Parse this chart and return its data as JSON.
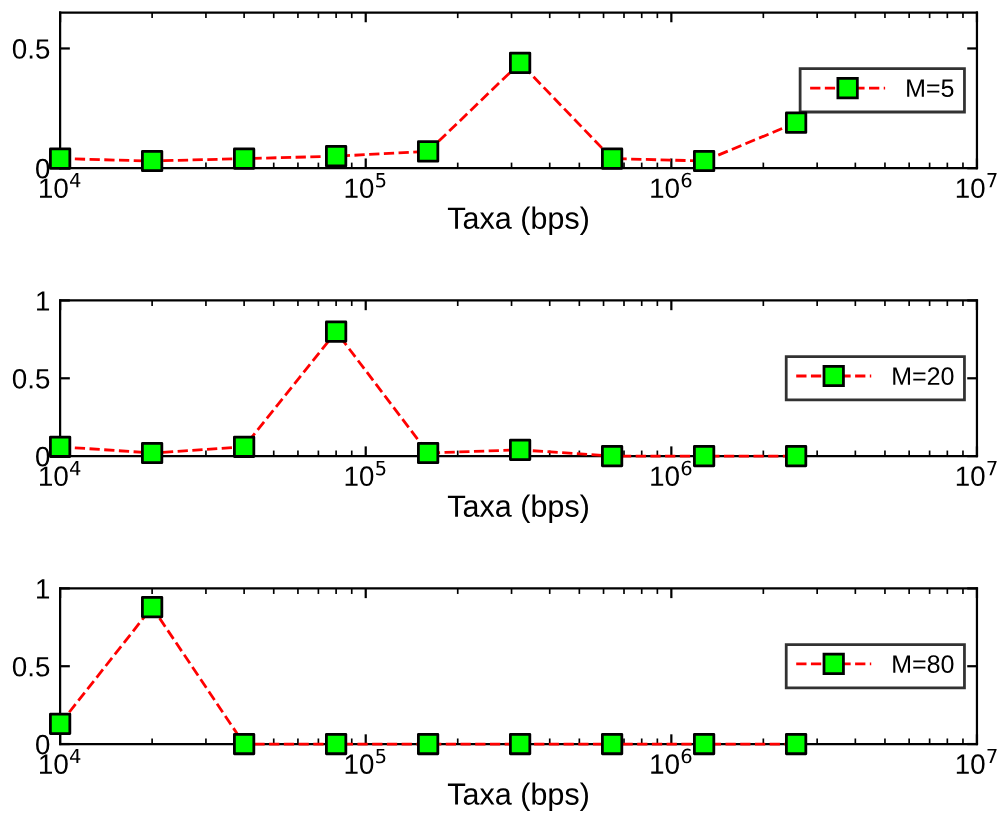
{
  "chart_data": [
    {
      "type": "line",
      "xlabel": "Taxa (bps)",
      "log": "x",
      "xlim": [
        10000,
        10000000
      ],
      "xticks": [
        {
          "value": 10000,
          "label": "10$^{4}$"
        },
        {
          "value": 100000,
          "label": "10$^{5}$"
        },
        {
          "value": 1000000,
          "label": "10$^{6}$"
        },
        {
          "value": 10000000,
          "label": "10$^{7}$"
        }
      ],
      "ylim": [
        0,
        0.65
      ],
      "yticks": [
        0,
        0.5
      ],
      "grid": false,
      "legend": "right",
      "marker": "square",
      "line_style": "dashed",
      "x": [
        10000,
        20000,
        40000,
        80000,
        160000,
        320000,
        640000,
        1280000,
        2560000
      ],
      "series": [
        {
          "name": "M=5",
          "color": "#ff0000",
          "colors": [
            "#00ff00",
            "#00ff00",
            "#00ff00",
            "#00ff00",
            "#00ff00",
            "#00ff00",
            "#00ff00",
            "#00ff00",
            "#00ff00"
          ],
          "values": [
            0.04,
            0.03,
            0.04,
            0.05,
            0.07,
            0.44,
            0.04,
            0.03,
            0.19
          ]
        }
      ]
    },
    {
      "type": "line",
      "xlabel": "Taxa (bps)",
      "log": "x",
      "xlim": [
        10000,
        10000000
      ],
      "xticks": [
        {
          "value": 10000,
          "label": "10$^{4}$"
        },
        {
          "value": 100000,
          "label": "10$^{5}$"
        },
        {
          "value": 1000000,
          "label": "10$^{6}$"
        },
        {
          "value": 10000000,
          "label": "10$^{7}$"
        }
      ],
      "ylim": [
        0,
        1
      ],
      "yticks": [
        0,
        0.5,
        1
      ],
      "grid": false,
      "legend": "right",
      "marker": "square",
      "line_style": "dashed",
      "x": [
        10000,
        20000,
        40000,
        80000,
        160000,
        320000,
        640000,
        1280000,
        2560000
      ],
      "series": [
        {
          "name": "M=20",
          "color": "#ff0000",
          "colors": [
            "#00ff00",
            "#00ff00",
            "#00ff00",
            "#00ff00",
            "#00ff00",
            "#00ff00",
            "#00ff00",
            "#00ff00",
            "#00ff00"
          ],
          "values": [
            0.06,
            0.02,
            0.06,
            0.8,
            0.02,
            0.04,
            0,
            0,
            0
          ]
        }
      ]
    },
    {
      "type": "line",
      "xlabel": "Taxa (bps)",
      "log": "x",
      "xlim": [
        10000,
        10000000
      ],
      "xticks": [
        {
          "value": 10000,
          "label": "10$^{4}$"
        },
        {
          "value": 100000,
          "label": "10$^{5}$"
        },
        {
          "value": 1000000,
          "label": "10$^{6}$"
        },
        {
          "value": 10000000,
          "label": "10$^{7}$"
        }
      ],
      "ylim": [
        0,
        1
      ],
      "yticks": [
        0,
        0.5,
        1
      ],
      "grid": false,
      "legend": "right",
      "marker": "square",
      "line_style": "dashed",
      "x": [
        10000,
        20000,
        40000,
        80000,
        160000,
        320000,
        640000,
        1280000,
        2560000
      ],
      "series": [
        {
          "name": "M=80",
          "color": "#ff0000",
          "colors": [
            "#00ff00",
            "#00ff00",
            "#00ff00",
            "#00ff00",
            "#00ff00",
            "#00ff00",
            "#00ff00",
            "#00ff00",
            "#00ff00"
          ],
          "values": [
            0.13,
            0.88,
            0,
            0,
            0,
            0,
            0,
            0,
            0
          ]
        }
      ]
    }
  ]
}
